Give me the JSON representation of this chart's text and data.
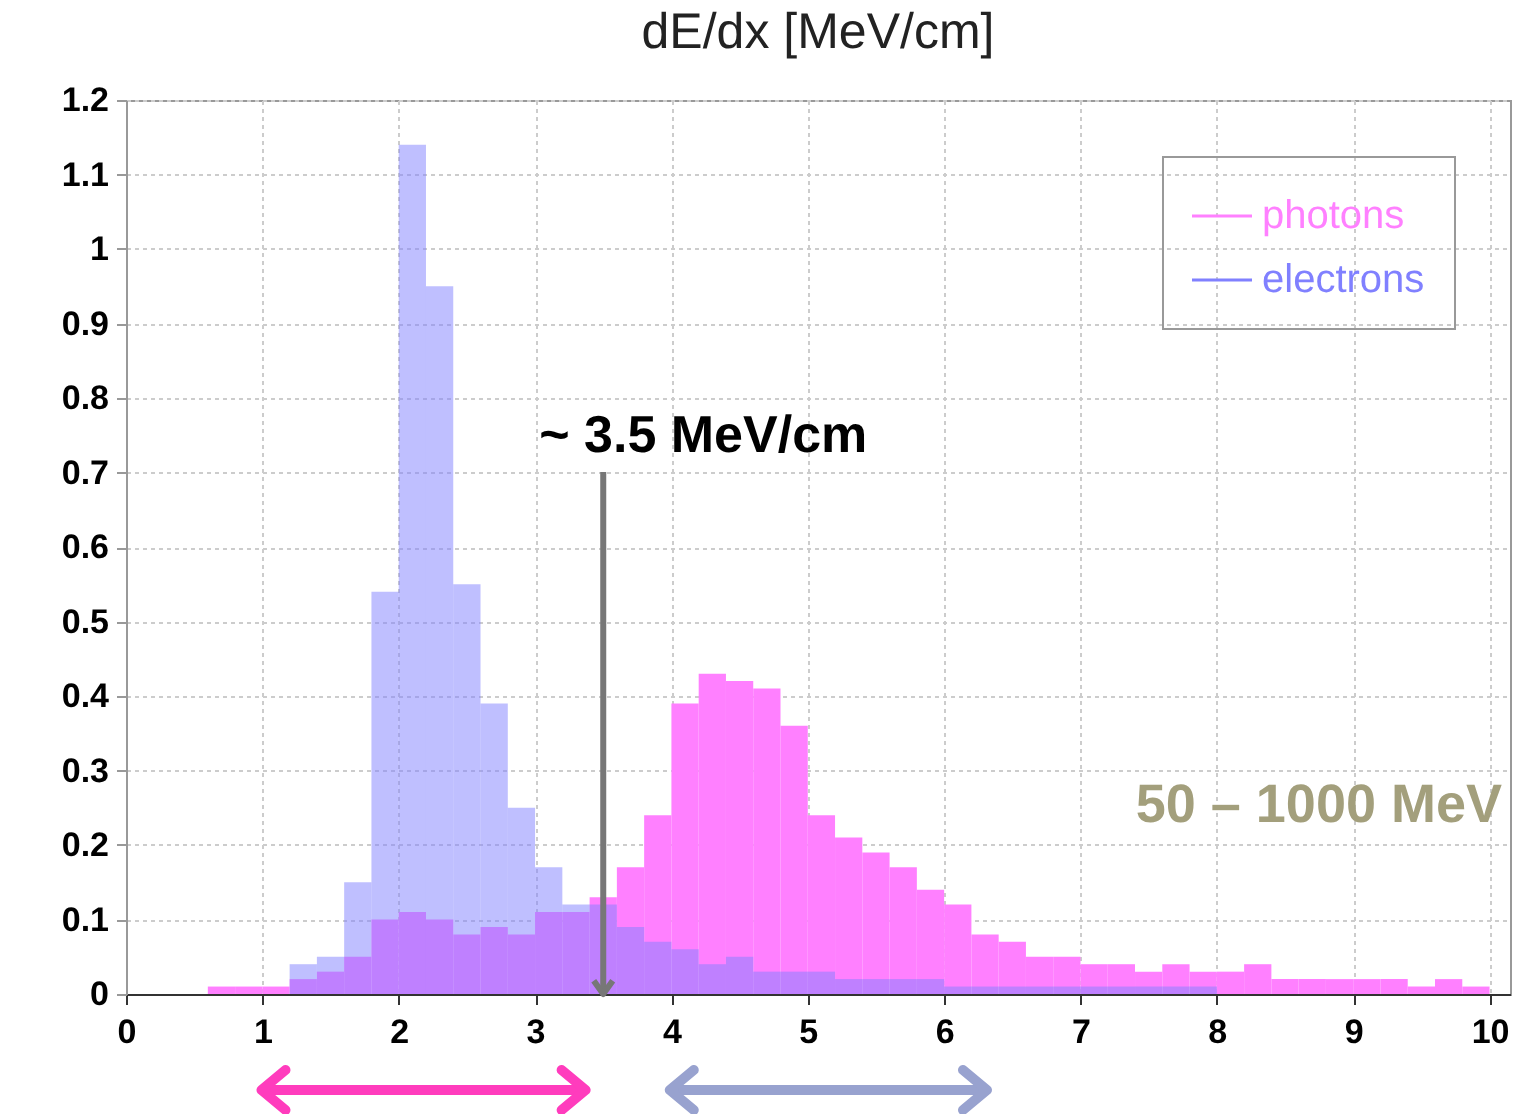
{
  "chart_data": {
    "type": "histogram",
    "title": "dE/dx [MeV/cm]",
    "bins": [
      0,
      0.2,
      0.4,
      0.6,
      0.8,
      1,
      1.2,
      1.4,
      1.6,
      1.8,
      2,
      2.2,
      2.4,
      2.6,
      2.8,
      3,
      3.2,
      3.4,
      3.6,
      3.8,
      4,
      4.2,
      4.4,
      4.6,
      4.8,
      5,
      5.2,
      5.4,
      5.6,
      5.8,
      6,
      6.2,
      6.4,
      6.6,
      6.8,
      7,
      7.2,
      7.4,
      7.6,
      7.8,
      8,
      8.2,
      8.4,
      8.6,
      8.8,
      9,
      9.2,
      9.4,
      9.6,
      9.8,
      10
    ],
    "series": [
      {
        "name": "photons",
        "color": "#ff80ff",
        "values": [
          0,
          0,
          0,
          0.01,
          0.01,
          0.01,
          0.02,
          0.03,
          0.05,
          0.1,
          0.11,
          0.1,
          0.08,
          0.09,
          0.08,
          0.11,
          0.11,
          0.13,
          0.17,
          0.24,
          0.39,
          0.43,
          0.42,
          0.41,
          0.36,
          0.24,
          0.21,
          0.19,
          0.17,
          0.14,
          0.12,
          0.08,
          0.07,
          0.05,
          0.05,
          0.04,
          0.04,
          0.03,
          0.04,
          0.03,
          0.03,
          0.04,
          0.02,
          0.02,
          0.02,
          0.02,
          0.02,
          0.01,
          0.02,
          0.01
        ]
      },
      {
        "name": "electrons",
        "color": "#8080ff",
        "values": [
          0,
          0,
          0,
          0,
          0,
          0,
          0.04,
          0.05,
          0.15,
          0.54,
          1.14,
          0.95,
          0.55,
          0.39,
          0.25,
          0.17,
          0.12,
          0.12,
          0.09,
          0.07,
          0.06,
          0.04,
          0.05,
          0.03,
          0.03,
          0.03,
          0.02,
          0.02,
          0.02,
          0.02,
          0.01,
          0.01,
          0.01,
          0.01,
          0.01,
          0.01,
          0.01,
          0.01,
          0.01,
          0.01,
          0,
          0,
          0,
          0,
          0,
          0,
          0,
          0,
          0,
          0
        ]
      }
    ],
    "xlim": [
      0,
      10.15
    ],
    "ylim": [
      0,
      1.2
    ],
    "xticks": [
      0,
      1,
      2,
      3,
      4,
      5,
      6,
      7,
      8,
      9,
      10
    ],
    "yticks": [
      0,
      0.1,
      0.2,
      0.3,
      0.4,
      0.5,
      0.6,
      0.7,
      0.8,
      0.9,
      1,
      1.1,
      1.2
    ],
    "annotations": [
      {
        "text": "~ 3.5 MeV/cm",
        "x": 3.5,
        "y": 0
      },
      "50 – 1000 MeV"
    ],
    "grid": true,
    "legend": "top right"
  }
}
